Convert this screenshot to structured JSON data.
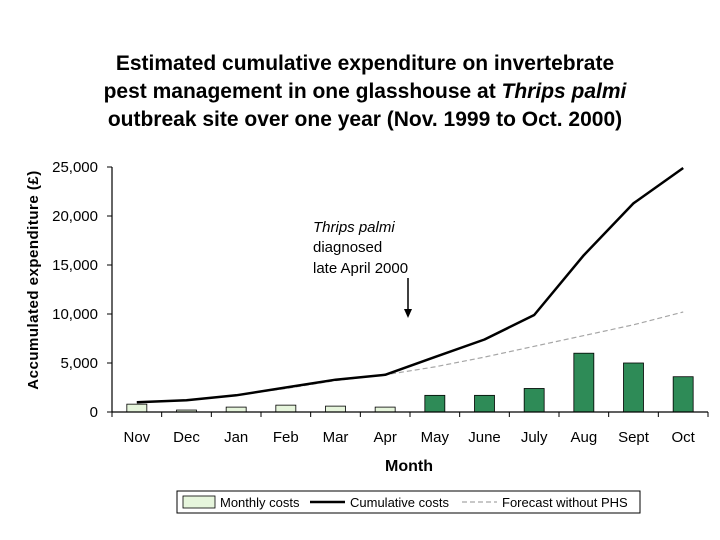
{
  "title": {
    "line1": "Estimated cumulative expenditure on invertebrate",
    "line2_pre": "pest management in one glasshouse at ",
    "line2_italic": "Thrips palmi",
    "line3": "outbreak site over one year (Nov. 1999 to Oct. 2000)"
  },
  "annotation": {
    "line1": "Thrips palmi",
    "line2": "diagnosed",
    "line3": "late April 2000"
  },
  "colors": {
    "bar_light": "#e6f5dc",
    "bar_dark": "#2e8b57",
    "cumulative": "#000000",
    "forecast": "#a6a6a6"
  },
  "chart_data": {
    "type": "bar",
    "categories": [
      "Nov",
      "Dec",
      "Jan",
      "Feb",
      "Mar",
      "Apr",
      "May",
      "June",
      "July",
      "Aug",
      "Sept",
      "Oct"
    ],
    "xlabel": "Month",
    "ylabel": "Accumulated expenditure (£)",
    "ylim": [
      0,
      25000
    ],
    "yticks": [
      0,
      5000,
      10000,
      15000,
      20000,
      25000
    ],
    "ytick_labels": [
      "0",
      "5,000",
      "10,000",
      "15,000",
      "20,000",
      "25,000"
    ],
    "grid": false,
    "legend_position": "bottom",
    "series": [
      {
        "name": "Monthly costs",
        "type": "bar",
        "values": [
          800,
          200,
          500,
          700,
          600,
          500,
          1700,
          1700,
          2400,
          6000,
          5000,
          3600
        ],
        "highlight_from_index": 6
      },
      {
        "name": "Cumulative costs",
        "type": "line",
        "values": [
          1000,
          1200,
          1700,
          2500,
          3300,
          3800,
          5600,
          7400,
          9900,
          16000,
          21300,
          24900
        ]
      },
      {
        "name": "Forecast without PHS",
        "type": "line",
        "style": "dashed",
        "values": [
          1000,
          1200,
          1700,
          2400,
          3200,
          3800,
          4600,
          5600,
          6700,
          7800,
          8900,
          10200
        ]
      }
    ]
  }
}
